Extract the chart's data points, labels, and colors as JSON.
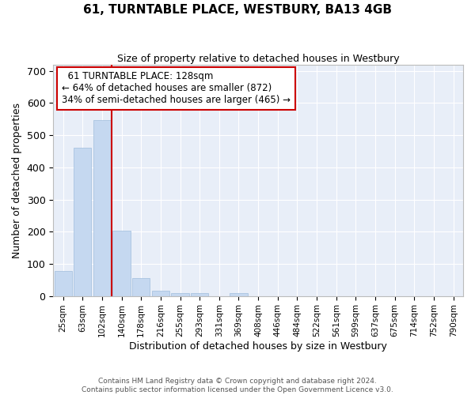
{
  "title": "61, TURNTABLE PLACE, WESTBURY, BA13 4GB",
  "subtitle": "Size of property relative to detached houses in Westbury",
  "xlabel": "Distribution of detached houses by size in Westbury",
  "ylabel": "Number of detached properties",
  "bar_color": "#c5d8f0",
  "bar_edge_color": "#a0bedd",
  "background_color": "#e8eef8",
  "grid_color": "#ffffff",
  "fig_background": "#ffffff",
  "categories": [
    "25sqm",
    "63sqm",
    "102sqm",
    "140sqm",
    "178sqm",
    "216sqm",
    "255sqm",
    "293sqm",
    "331sqm",
    "369sqm",
    "408sqm",
    "446sqm",
    "484sqm",
    "522sqm",
    "561sqm",
    "599sqm",
    "637sqm",
    "675sqm",
    "714sqm",
    "752sqm",
    "790sqm"
  ],
  "values": [
    78,
    461,
    547,
    204,
    56,
    15,
    9,
    9,
    0,
    8,
    0,
    0,
    0,
    0,
    0,
    0,
    0,
    0,
    0,
    0,
    0
  ],
  "annotation_text": "  61 TURNTABLE PLACE: 128sqm\n← 64% of detached houses are smaller (872)\n34% of semi-detached houses are larger (465) →",
  "annotation_box_color": "#ffffff",
  "annotation_box_edge_color": "#cc0000",
  "vline_color": "#cc0000",
  "vline_x": 2.5,
  "ylim": [
    0,
    720
  ],
  "yticks": [
    0,
    100,
    200,
    300,
    400,
    500,
    600,
    700
  ],
  "footer_line1": "Contains HM Land Registry data © Crown copyright and database right 2024.",
  "footer_line2": "Contains public sector information licensed under the Open Government Licence v3.0."
}
